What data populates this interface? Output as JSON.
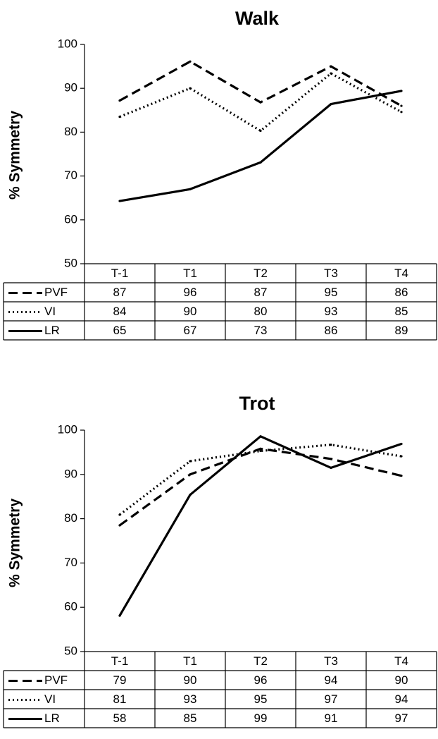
{
  "chart_data": [
    {
      "type": "line",
      "title": "Walk",
      "ylabel": "% Symmetry",
      "xlabel": "",
      "ylim": [
        50,
        100
      ],
      "yticks": [
        50,
        60,
        70,
        80,
        90,
        100
      ],
      "categories": [
        "T-1",
        "T1",
        "T2",
        "T3",
        "T4"
      ],
      "grid": false,
      "legend": "data-table",
      "series": [
        {
          "name": "PVF",
          "style": "dashed",
          "values": [
            87,
            96,
            87,
            95,
            86
          ],
          "plot_values": [
            87.2,
            96.1,
            86.8,
            95.0,
            86.0
          ]
        },
        {
          "name": "VI",
          "style": "dotted",
          "values": [
            84,
            90,
            80,
            93,
            85
          ],
          "plot_values": [
            83.5,
            90.0,
            80.3,
            93.4,
            84.6
          ]
        },
        {
          "name": "LR",
          "style": "solid",
          "values": [
            65,
            67,
            73,
            86,
            89
          ],
          "plot_values": [
            64.3,
            67.0,
            73.1,
            86.4,
            89.4
          ]
        }
      ]
    },
    {
      "type": "line",
      "title": "Trot",
      "ylabel": "% Symmetry",
      "xlabel": "",
      "ylim": [
        50,
        100
      ],
      "yticks": [
        50,
        60,
        70,
        80,
        90,
        100
      ],
      "categories": [
        "T-1",
        "T1",
        "T2",
        "T3",
        "T4"
      ],
      "grid": false,
      "legend": "data-table",
      "series": [
        {
          "name": "PVF",
          "style": "dashed",
          "values": [
            79,
            90,
            96,
            94,
            90
          ],
          "plot_values": [
            78.5,
            90.0,
            95.8,
            93.5,
            89.7
          ]
        },
        {
          "name": "VI",
          "style": "dotted",
          "values": [
            81,
            93,
            95,
            97,
            94
          ],
          "plot_values": [
            80.9,
            93.0,
            95.3,
            96.7,
            94.1
          ]
        },
        {
          "name": "LR",
          "style": "solid",
          "values": [
            58,
            85,
            99,
            91,
            97
          ],
          "plot_values": [
            58.1,
            85.4,
            98.6,
            91.5,
            96.9
          ]
        }
      ]
    }
  ]
}
